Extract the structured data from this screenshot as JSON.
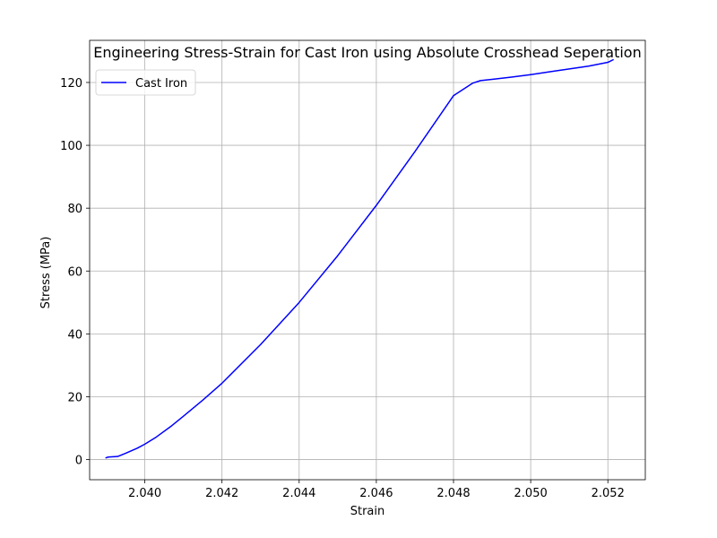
{
  "chart_data": {
    "type": "line",
    "title": "Engineering Stress-Strain for Cast Iron using Absolute Crosshead Seperation",
    "xlabel": "Strain",
    "ylabel": "Stress (MPa)",
    "xlim": [
      2.03857,
      2.05297
    ],
    "ylim": [
      -6.4,
      133.4
    ],
    "xticks": [
      2.04,
      2.042,
      2.044,
      2.046,
      2.048,
      2.05,
      2.052
    ],
    "xtick_labels": [
      "2.040",
      "2.042",
      "2.044",
      "2.046",
      "2.048",
      "2.050",
      "2.052"
    ],
    "yticks": [
      0,
      20,
      40,
      60,
      80,
      100,
      120
    ],
    "ytick_labels": [
      "0",
      "20",
      "40",
      "60",
      "80",
      "100",
      "120"
    ],
    "grid": true,
    "legend_position": "upper-left",
    "series": [
      {
        "name": "Cast Iron",
        "color": "#0000ff",
        "x": [
          2.03898,
          2.03905,
          2.0393,
          2.0395,
          2.0398,
          2.04,
          2.0403,
          2.0407,
          2.041,
          2.0415,
          2.042,
          2.043,
          2.044,
          2.045,
          2.046,
          2.047,
          2.048,
          2.0483,
          2.0485,
          2.0487,
          2.049,
          2.0495,
          2.05,
          2.0505,
          2.051,
          2.0515,
          2.052,
          2.05215
        ],
        "y": [
          0.5,
          0.8,
          1.0,
          2.0,
          3.6,
          4.9,
          7.2,
          10.8,
          13.8,
          18.9,
          24.3,
          36.6,
          50.0,
          64.9,
          80.9,
          98.0,
          115.8,
          118.2,
          119.8,
          120.6,
          121.0,
          121.7,
          122.5,
          123.4,
          124.3,
          125.2,
          126.4,
          127.3
        ]
      }
    ]
  }
}
